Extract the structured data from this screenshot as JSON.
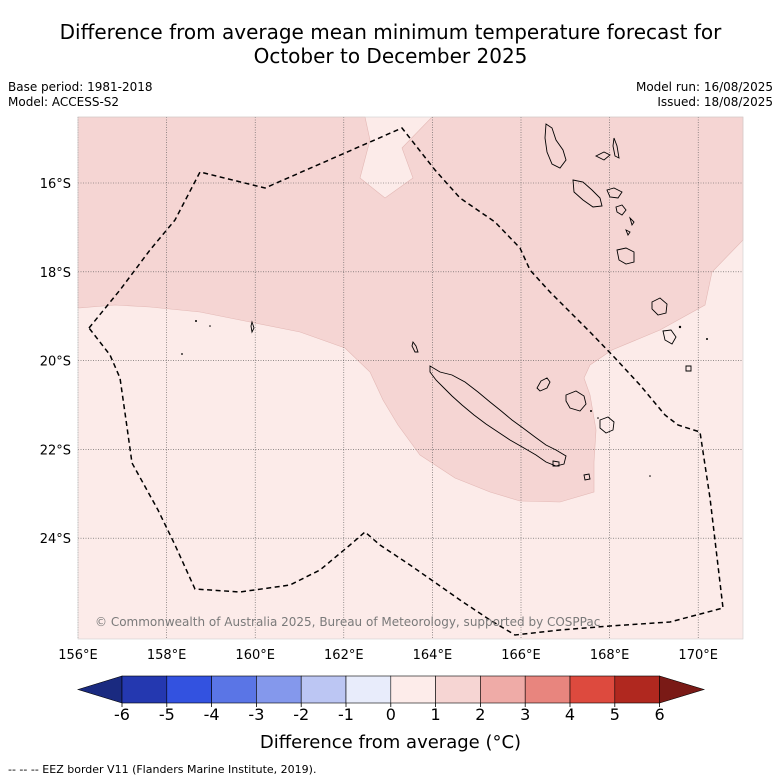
{
  "title_line1": "Difference from average mean minimum temperature forecast for",
  "title_line2": "October to December 2025",
  "base_period": "Base period: 1981-2018",
  "model": "Model: ACCESS-S2",
  "model_run": "Model run: 16/08/2025",
  "issued": "Issued: 18/08/2025",
  "copyright": "© Commonwealth of Australia 2025, Bureau of Meteorology, supported by COSPPac",
  "lat_labels": [
    "16°S",
    "18°S",
    "20°S",
    "22°S",
    "24°S"
  ],
  "lon_labels": [
    "156°E",
    "158°E",
    "160°E",
    "162°E",
    "164°E",
    "166°E",
    "168°E",
    "170°E"
  ],
  "colorbar": {
    "ticks": [
      "-6",
      "-5",
      "-4",
      "-3",
      "-2",
      "-1",
      "0",
      "1",
      "2",
      "3",
      "4",
      "5",
      "6"
    ],
    "colors": [
      "#1a2a80",
      "#2438b0",
      "#3352e0",
      "#5a75e6",
      "#8498ec",
      "#bcc6f3",
      "#e8ecfb",
      "#fdecea",
      "#f6d5d3",
      "#efaba7",
      "#e8857e",
      "#dd4a3e",
      "#b0281f",
      "#7a1a16"
    ],
    "label": "Difference from average (°C)"
  },
  "footnote": "--  --  -- EEZ border V11 (Flanders Marine Institute, 2019).",
  "colors": {
    "light": "#fcebe9",
    "medium": "#f5d5d3",
    "eez": "#000000"
  }
}
